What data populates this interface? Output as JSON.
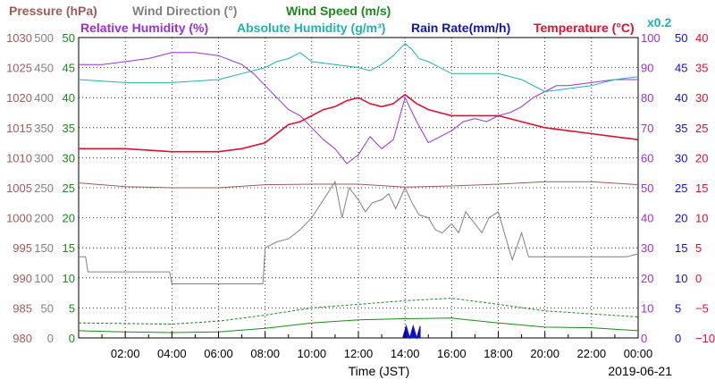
{
  "chart_data": {
    "type": "line",
    "title": "",
    "legend_line1": [
      {
        "text": "Pressure (hPa)",
        "color": "#a05a5a"
      },
      {
        "text": "Wind Direction (°)",
        "color": "#808080"
      },
      {
        "text": "Wind Speed (m/s)",
        "color": "#1a8a1a"
      }
    ],
    "legend_line2": [
      {
        "text": "Relative Humidity (%)",
        "color": "#9b30d9"
      },
      {
        "text": "Absolute Humidity (g/m³)",
        "color": "#20b2aa"
      },
      {
        "text": "Rain Rate(mm/h)",
        "color": "#1010d0"
      },
      {
        "text": "Temperature (°C)",
        "color": "#e01030"
      }
    ],
    "abs_humidity_scale": "x0.2",
    "xlabel": "Time (JST)",
    "date": "2019-06-21",
    "x_range_hours": [
      0,
      24
    ],
    "x_tick_labels": [
      "02:00",
      "04:00",
      "06:00",
      "08:00",
      "10:00",
      "12:00",
      "14:00",
      "16:00",
      "18:00",
      "20:00",
      "22:00",
      "00:00"
    ],
    "axes": {
      "pressure": {
        "color": "#a05a5a",
        "ylim": [
          980,
          1030
        ],
        "ticks": [
          "980",
          "985",
          "990",
          "995",
          "1000",
          "1005",
          "1010",
          "1015",
          "1020",
          "1025",
          "1030"
        ]
      },
      "wind_direction": {
        "color": "#808080",
        "ylim": [
          0,
          500
        ],
        "ticks": [
          "0",
          "50",
          "100",
          "150",
          "200",
          "250",
          "300",
          "350",
          "400",
          "450",
          "500"
        ]
      },
      "wind_speed": {
        "color": "#1a8a1a",
        "ylim": [
          0,
          50
        ],
        "ticks": [
          "0",
          "5",
          "10",
          "15",
          "20",
          "25",
          "30",
          "35",
          "40",
          "45",
          "50"
        ]
      },
      "humidity": {
        "color": "#9b30d9",
        "ylim": [
          0,
          100
        ],
        "ticks": [
          "0",
          "10",
          "20",
          "30",
          "40",
          "50",
          "60",
          "70",
          "80",
          "90",
          "100"
        ]
      },
      "rain_rate": {
        "color": "#1010d0",
        "ylim": [
          0,
          50
        ],
        "ticks": [
          "0",
          "5",
          "10",
          "15",
          "20",
          "25",
          "30",
          "35",
          "40",
          "45",
          "50"
        ]
      },
      "temperature": {
        "color": "#e01030",
        "ylim": [
          -10,
          40
        ],
        "ticks": [
          "−10",
          "−5",
          "0",
          "5",
          "10",
          "15",
          "20",
          "25",
          "30",
          "35",
          "40"
        ]
      }
    },
    "series": [
      {
        "name": "Pressure (hPa)",
        "axis": "pressure",
        "color": "#a05a5a",
        "x": [
          0,
          2,
          4,
          6,
          8,
          10,
          12,
          14,
          16,
          18,
          20,
          22,
          24
        ],
        "values": [
          1005.8,
          1005.2,
          1005,
          1005,
          1005.5,
          1005.6,
          1005.6,
          1005.1,
          1005.3,
          1005.6,
          1006,
          1006,
          1005.5
        ]
      },
      {
        "name": "Wind Direction (°)",
        "axis": "wind_direction",
        "color": "#808080",
        "x": [
          0,
          0.3,
          0.4,
          2,
          3.9,
          4,
          4.3,
          4.5,
          6,
          7.9,
          8,
          8.5,
          9,
          9.5,
          10,
          10.5,
          11,
          11.3,
          11.6,
          12,
          12.3,
          12.6,
          13,
          13.3,
          13.6,
          14,
          14.3,
          14.6,
          15,
          15.3,
          15.6,
          16,
          16.3,
          16.6,
          17,
          17.3,
          17.6,
          18,
          18.3,
          18.6,
          19,
          19.3,
          20,
          21,
          22,
          22.5,
          23,
          23.5,
          24
        ],
        "values": [
          135,
          135,
          110,
          110,
          110,
          90,
          90,
          90,
          90,
          90,
          150,
          160,
          165,
          180,
          200,
          230,
          260,
          200,
          250,
          230,
          210,
          225,
          230,
          240,
          215,
          250,
          225,
          205,
          200,
          180,
          175,
          190,
          175,
          210,
          190,
          175,
          200,
          210,
          170,
          130,
          175,
          135,
          135,
          135,
          135,
          135,
          135,
          135,
          140
        ]
      },
      {
        "name": "Wind Speed (m/s)",
        "axis": "wind_speed",
        "color": "#1a8a1a",
        "x": [
          0,
          2,
          4,
          6,
          8,
          10,
          12,
          14,
          16,
          18,
          20,
          22,
          24
        ],
        "values": [
          1.2,
          1.0,
          0.9,
          1.0,
          1.6,
          2.5,
          3.0,
          3.2,
          3.3,
          2.5,
          1.8,
          1.7,
          1.2
        ]
      },
      {
        "name": "Wind Speed (m/s)",
        "axis": "wind_speed",
        "color": "#1a8a1a",
        "x": [
          0,
          2,
          4,
          6,
          8,
          10,
          12,
          14,
          16,
          18,
          20,
          22,
          24
        ],
        "values": [
          2.5,
          2.4,
          2.3,
          2.8,
          3.8,
          5.0,
          5.6,
          6.2,
          6.6,
          5.6,
          4.5,
          4.0,
          3.5
        ]
      },
      {
        "name": "Relative Humidity (%)",
        "axis": "humidity",
        "color": "#9b30d9",
        "x": [
          0,
          1,
          2,
          3,
          4,
          5,
          6,
          7,
          7.5,
          8,
          8.5,
          9,
          9.5,
          10,
          10.5,
          11,
          11.5,
          12,
          12.5,
          13,
          13.5,
          14,
          14.5,
          15,
          15.5,
          16,
          16.5,
          17,
          17.5,
          18,
          18.5,
          19,
          19.5,
          20,
          20.5,
          21,
          22,
          23,
          24
        ],
        "values": [
          91,
          91,
          92,
          93,
          95,
          95,
          94,
          91,
          88,
          84,
          80,
          76,
          74,
          70,
          66,
          63,
          58,
          61,
          67,
          63,
          66,
          80,
          72,
          65,
          67,
          69,
          72,
          73,
          72,
          74,
          75,
          77,
          80,
          82,
          84,
          84,
          85,
          86,
          86
        ]
      },
      {
        "name": "Absolute Humidity (g/m³)",
        "axis": "humidity",
        "color": "#20b2aa",
        "x": [
          0,
          2,
          4,
          6,
          7,
          8,
          8.5,
          9,
          9.5,
          10,
          11,
          12,
          12.5,
          13,
          13.5,
          14,
          14.3,
          14.6,
          15,
          16,
          17,
          18,
          19,
          20,
          21,
          22,
          23,
          24
        ],
        "values": [
          86,
          85,
          85,
          86,
          88,
          90,
          92,
          93,
          95,
          92,
          91,
          90,
          89,
          91,
          94,
          98,
          96,
          93,
          92,
          88,
          88,
          88,
          86,
          82,
          83,
          84,
          86,
          87
        ]
      },
      {
        "name": "Rain Rate(mm/h)",
        "axis": "rain_rate",
        "color": "#1010d0",
        "x": [
          13.9,
          14.05,
          14.2,
          14.35,
          14.5,
          14.65
        ],
        "values": [
          0,
          2,
          0,
          2,
          0,
          2
        ]
      },
      {
        "name": "Temperature (°C)",
        "axis": "temperature",
        "color": "#e01030",
        "x": [
          0,
          2,
          4,
          6,
          7,
          8,
          8.5,
          9,
          9.5,
          10,
          10.5,
          11,
          11.5,
          12,
          12.5,
          13,
          13.5,
          14,
          14.5,
          15,
          16,
          17,
          18,
          19,
          20,
          21,
          22,
          23,
          24
        ],
        "values": [
          21.5,
          21.5,
          21,
          21,
          21.5,
          22.5,
          24,
          25.5,
          26,
          27,
          28,
          28.5,
          29.5,
          30,
          29,
          28.5,
          29,
          30.5,
          29,
          28,
          27,
          27,
          27,
          26,
          25,
          24.5,
          24,
          23.5,
          23
        ]
      }
    ]
  }
}
